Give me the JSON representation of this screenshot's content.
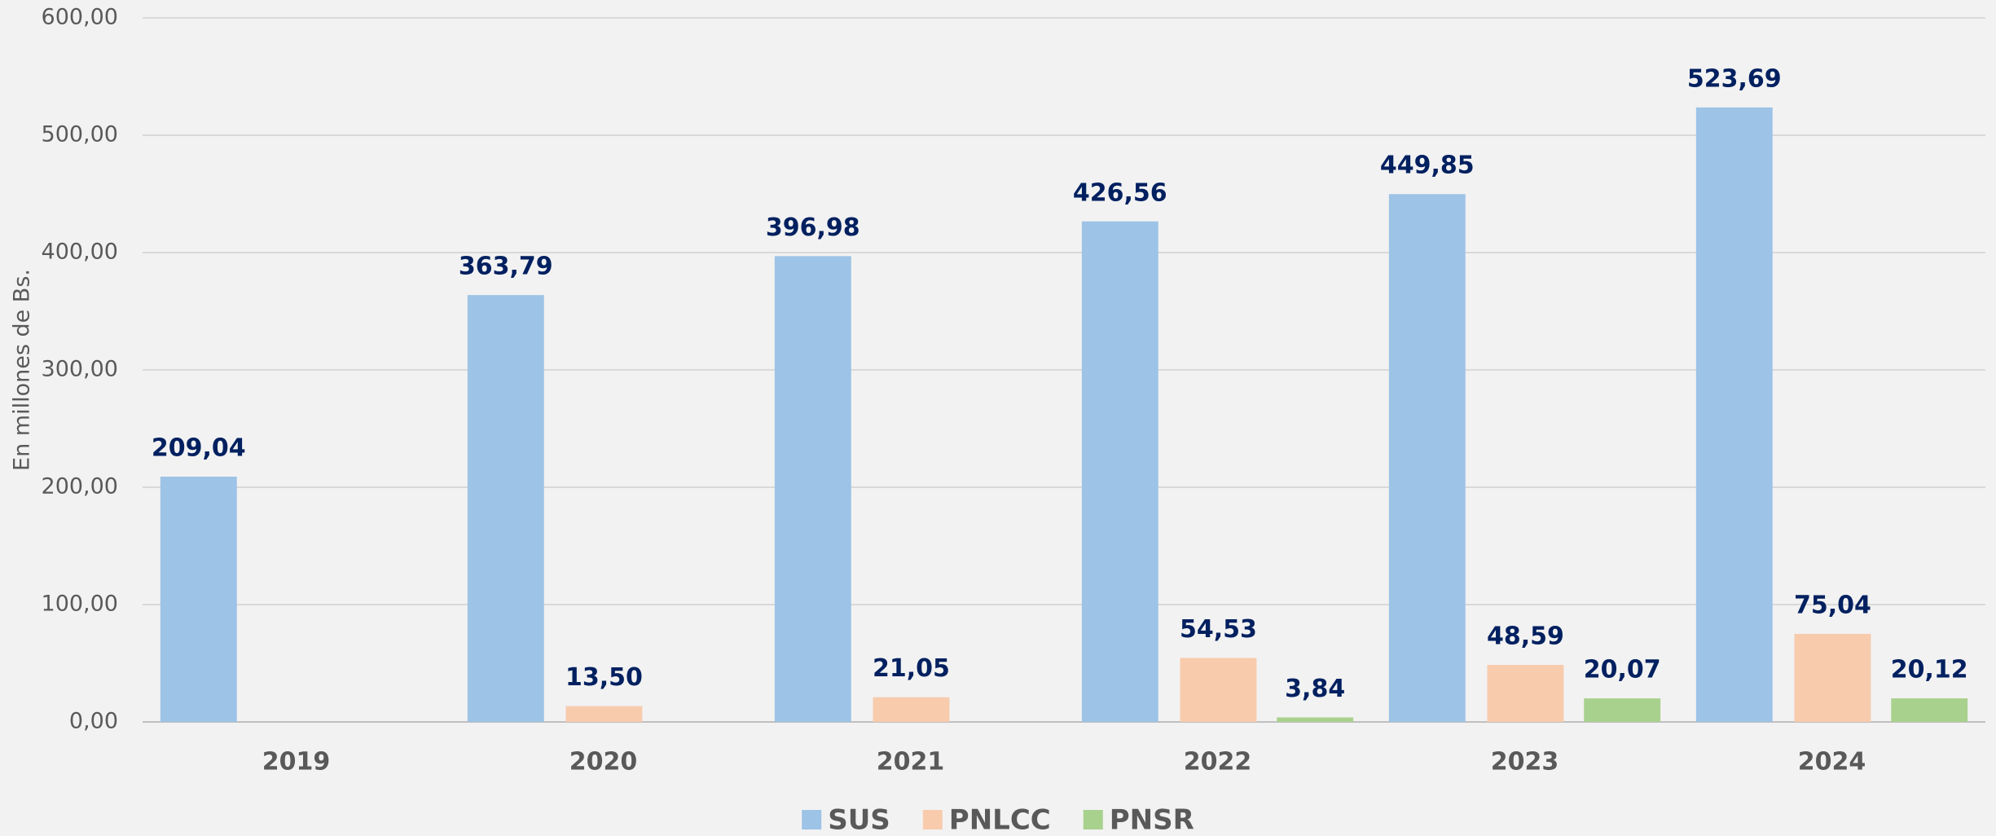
{
  "chart_data": {
    "type": "bar",
    "y_label": "En millones de Bs.",
    "categories": [
      "2019",
      "2020",
      "2021",
      "2022",
      "2023",
      "2024"
    ],
    "series": [
      {
        "name": "SUS",
        "color": "#9dc3e6",
        "values": [
          209.04,
          363.79,
          396.98,
          426.56,
          449.85,
          523.69
        ],
        "value_labels": [
          "209,04",
          "363,79",
          "396,98",
          "426,56",
          "449,85",
          "523,69"
        ]
      },
      {
        "name": "PNLCC",
        "color": "#f8cbad",
        "values": [
          null,
          13.5,
          21.05,
          54.53,
          48.59,
          75.04
        ],
        "value_labels": [
          null,
          "13,50",
          "21,05",
          "54,53",
          "48,59",
          "75,04"
        ]
      },
      {
        "name": "PNSR",
        "color": "#a9d18e",
        "values": [
          null,
          null,
          null,
          3.84,
          20.07,
          20.12
        ],
        "value_labels": [
          null,
          null,
          null,
          "3,84",
          "20,07",
          "20,12"
        ]
      }
    ],
    "ylim": [
      0,
      600
    ],
    "yticks": [
      {
        "value": 0,
        "label": "0,00"
      },
      {
        "value": 100,
        "label": "100,00"
      },
      {
        "value": 200,
        "label": "200,00"
      },
      {
        "value": 300,
        "label": "300,00"
      },
      {
        "value": 400,
        "label": "400,00"
      },
      {
        "value": 500,
        "label": "500,00"
      },
      {
        "value": 600,
        "label": "600,00"
      }
    ],
    "grid": true,
    "legend": "bottom"
  }
}
